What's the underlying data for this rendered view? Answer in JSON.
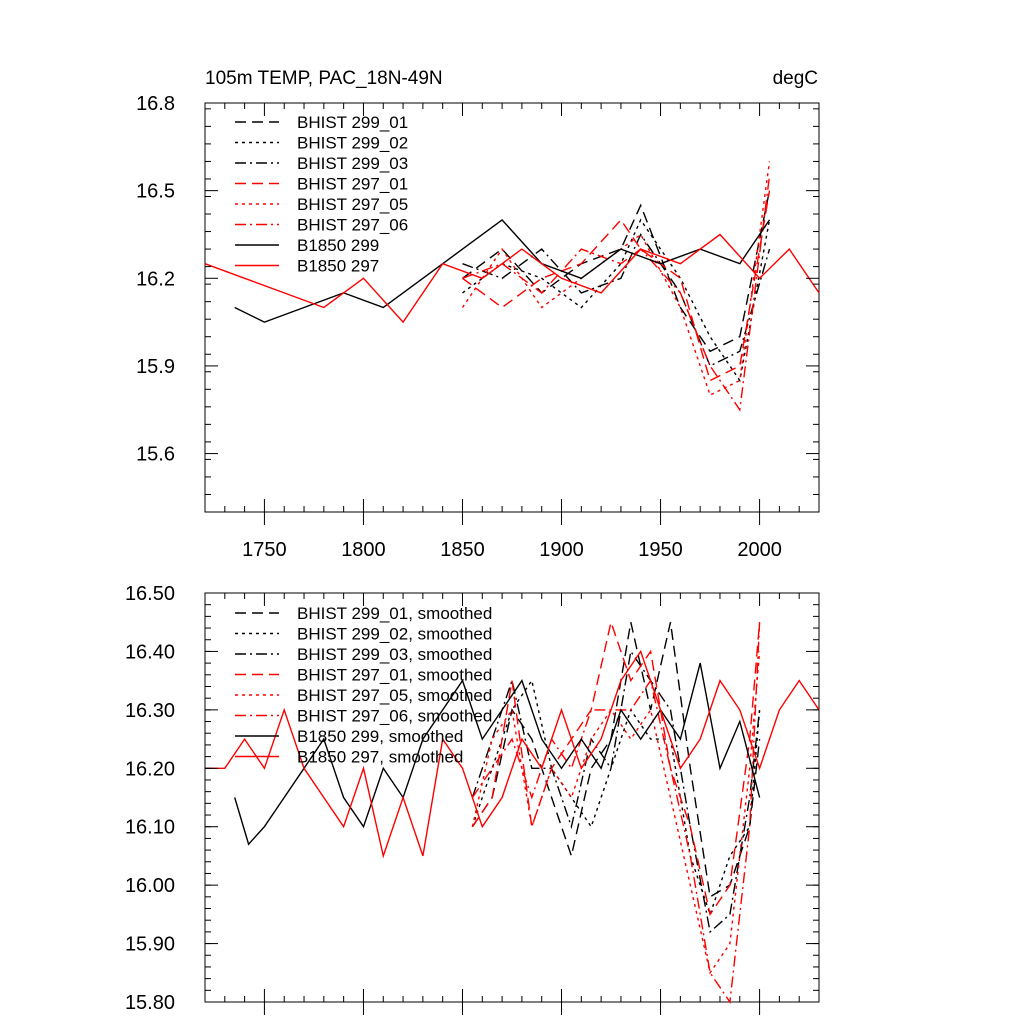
{
  "chart_data": [
    {
      "type": "line",
      "title": "105m TEMP, PAC_18N-49N",
      "title_right": "degC",
      "xlim": [
        1720,
        2030
      ],
      "ylim": [
        15.4,
        16.8
      ],
      "xticks": [
        1750,
        1800,
        1850,
        1900,
        1950,
        2000
      ],
      "xtick_labels": [
        "1750",
        "1800",
        "1850",
        "1900",
        "1950",
        "2000"
      ],
      "yticks": [
        15.6,
        15.9,
        16.2,
        16.5,
        16.8
      ],
      "ytick_labels": [
        "15.6",
        "15.9",
        "16.2",
        "16.5",
        "16.8"
      ],
      "grid": false,
      "legend_position": "top-left",
      "series": [
        {
          "name": "BHIST 299_01",
          "color": "#000000",
          "style": "dash",
          "x": [
            1850,
            1870,
            1890,
            1910,
            1930,
            1940,
            1960,
            1975,
            1990,
            2005
          ],
          "y": [
            16.2,
            16.3,
            16.15,
            16.25,
            16.3,
            16.45,
            16.1,
            15.95,
            16.0,
            16.5
          ]
        },
        {
          "name": "BHIST 299_02",
          "color": "#000000",
          "style": "dot",
          "x": [
            1850,
            1870,
            1890,
            1910,
            1930,
            1940,
            1960,
            1975,
            1990,
            2005
          ],
          "y": [
            16.15,
            16.25,
            16.2,
            16.1,
            16.25,
            16.4,
            16.2,
            16.0,
            15.85,
            16.4
          ]
        },
        {
          "name": "BHIST 299_03",
          "color": "#000000",
          "style": "dashdot",
          "x": [
            1850,
            1870,
            1890,
            1910,
            1930,
            1940,
            1960,
            1975,
            1990,
            2005
          ],
          "y": [
            16.25,
            16.2,
            16.3,
            16.15,
            16.2,
            16.35,
            16.15,
            15.9,
            15.95,
            16.3
          ]
        },
        {
          "name": "BHIST 297_01",
          "color": "#ff0000",
          "style": "dash",
          "x": [
            1850,
            1870,
            1890,
            1910,
            1930,
            1940,
            1960,
            1975,
            1990,
            2005
          ],
          "y": [
            16.2,
            16.1,
            16.2,
            16.25,
            16.4,
            16.3,
            16.2,
            15.85,
            15.9,
            16.5
          ]
        },
        {
          "name": "BHIST 297_05",
          "color": "#ff0000",
          "style": "dot",
          "x": [
            1850,
            1870,
            1890,
            1910,
            1930,
            1940,
            1960,
            1975,
            1990,
            2005
          ],
          "y": [
            16.1,
            16.3,
            16.1,
            16.2,
            16.3,
            16.35,
            16.1,
            15.8,
            15.85,
            16.6
          ]
        },
        {
          "name": "BHIST 297_06",
          "color": "#ff0000",
          "style": "dashdot",
          "x": [
            1850,
            1870,
            1890,
            1910,
            1930,
            1940,
            1960,
            1975,
            1990,
            2005
          ],
          "y": [
            16.2,
            16.25,
            16.15,
            16.3,
            16.25,
            16.3,
            16.15,
            15.9,
            15.75,
            16.55
          ]
        },
        {
          "name": "B1850 299",
          "color": "#000000",
          "style": "solid",
          "x": [
            1735,
            1750,
            1770,
            1790,
            1810,
            1830,
            1850,
            1870,
            1890,
            1910,
            1930,
            1950,
            1970,
            1990,
            2005
          ],
          "y": [
            16.1,
            16.05,
            16.1,
            16.15,
            16.1,
            16.2,
            16.3,
            16.4,
            16.25,
            16.2,
            16.3,
            16.25,
            16.3,
            16.25,
            16.4
          ]
        },
        {
          "name": "B1850 297",
          "color": "#ff0000",
          "style": "solid",
          "x": [
            1720,
            1740,
            1760,
            1780,
            1800,
            1820,
            1840,
            1860,
            1880,
            1900,
            1920,
            1940,
            1960,
            1980,
            2000,
            2015,
            2030
          ],
          "y": [
            16.25,
            16.2,
            16.15,
            16.1,
            16.2,
            16.05,
            16.25,
            16.2,
            16.3,
            16.2,
            16.15,
            16.3,
            16.25,
            16.35,
            16.2,
            16.3,
            16.15
          ]
        }
      ]
    },
    {
      "type": "line",
      "xlim": [
        1720,
        2030
      ],
      "ylim": [
        15.8,
        16.5
      ],
      "yticks": [
        15.8,
        15.9,
        16.0,
        16.1,
        16.2,
        16.3,
        16.4,
        16.5
      ],
      "ytick_labels": [
        "15.80",
        "15.90",
        "16.00",
        "16.10",
        "16.20",
        "16.30",
        "16.40",
        "16.50"
      ],
      "grid": false,
      "legend_position": "top-left",
      "series": [
        {
          "name": "BHIST 299_01, smoothed",
          "color": "#000000",
          "style": "dash",
          "x": [
            1855,
            1865,
            1875,
            1885,
            1895,
            1905,
            1915,
            1925,
            1935,
            1945,
            1955,
            1965,
            1975,
            1985,
            1995,
            2000
          ],
          "y": [
            16.1,
            16.15,
            16.3,
            16.25,
            16.15,
            16.05,
            16.2,
            16.25,
            16.45,
            16.3,
            16.45,
            16.2,
            15.98,
            16.0,
            16.1,
            16.25
          ]
        },
        {
          "name": "BHIST 299_02, smoothed",
          "color": "#000000",
          "style": "dot",
          "x": [
            1855,
            1865,
            1875,
            1885,
            1895,
            1905,
            1915,
            1925,
            1935,
            1945,
            1955,
            1965,
            1975,
            1985,
            1995,
            2000
          ],
          "y": [
            16.1,
            16.2,
            16.3,
            16.35,
            16.2,
            16.15,
            16.1,
            16.2,
            16.3,
            16.25,
            16.25,
            16.05,
            15.95,
            16.05,
            16.1,
            16.3
          ]
        },
        {
          "name": "BHIST 299_03, smoothed",
          "color": "#000000",
          "style": "dashdot",
          "x": [
            1855,
            1865,
            1875,
            1885,
            1895,
            1905,
            1915,
            1925,
            1935,
            1945,
            1955,
            1965,
            1975,
            1985,
            1995,
            2000
          ],
          "y": [
            16.15,
            16.25,
            16.35,
            16.2,
            16.2,
            16.1,
            16.25,
            16.2,
            16.4,
            16.35,
            16.3,
            16.1,
            15.92,
            15.95,
            16.15,
            16.3
          ]
        },
        {
          "name": "BHIST 297_01, smoothed",
          "color": "#ff0000",
          "style": "dash",
          "x": [
            1855,
            1865,
            1875,
            1885,
            1895,
            1905,
            1915,
            1925,
            1935,
            1945,
            1955,
            1965,
            1975,
            1985,
            1995,
            2000
          ],
          "y": [
            16.1,
            16.15,
            16.35,
            16.1,
            16.2,
            16.25,
            16.3,
            16.45,
            16.35,
            16.4,
            16.2,
            16.1,
            15.95,
            16.0,
            16.25,
            16.45
          ]
        },
        {
          "name": "BHIST 297_05, smoothed",
          "color": "#ff0000",
          "style": "dot",
          "x": [
            1855,
            1865,
            1875,
            1885,
            1895,
            1905,
            1915,
            1925,
            1935,
            1945,
            1955,
            1965,
            1975,
            1985,
            1995,
            2000
          ],
          "y": [
            16.1,
            16.25,
            16.3,
            16.1,
            16.2,
            16.15,
            16.25,
            16.3,
            16.25,
            16.3,
            16.15,
            16.0,
            15.85,
            15.9,
            16.2,
            16.4
          ]
        },
        {
          "name": "BHIST 297_06, smoothed",
          "color": "#ff0000",
          "style": "dashdot",
          "x": [
            1855,
            1865,
            1875,
            1885,
            1895,
            1905,
            1915,
            1925,
            1935,
            1945,
            1955,
            1965,
            1975,
            1985,
            1995,
            2000
          ],
          "y": [
            16.15,
            16.2,
            16.25,
            16.15,
            16.25,
            16.2,
            16.3,
            16.3,
            16.3,
            16.35,
            16.2,
            16.05,
            15.85,
            15.8,
            16.1,
            16.45
          ]
        },
        {
          "name": "B1850 299, smoothed",
          "color": "#000000",
          "style": "solid",
          "x": [
            1735,
            1742,
            1750,
            1760,
            1770,
            1780,
            1790,
            1800,
            1810,
            1820,
            1830,
            1840,
            1850,
            1860,
            1870,
            1880,
            1890,
            1900,
            1910,
            1920,
            1930,
            1940,
            1950,
            1960,
            1970,
            1980,
            1990,
            2000
          ],
          "y": [
            16.15,
            16.07,
            16.1,
            16.15,
            16.2,
            16.25,
            16.15,
            16.1,
            16.2,
            16.15,
            16.25,
            16.3,
            16.35,
            16.25,
            16.3,
            16.35,
            16.25,
            16.2,
            16.25,
            16.2,
            16.3,
            16.25,
            16.3,
            16.25,
            16.38,
            16.2,
            16.28,
            16.15
          ]
        },
        {
          "name": "B1850 297, smoothed",
          "color": "#ff0000",
          "style": "solid",
          "x": [
            1720,
            1730,
            1740,
            1750,
            1760,
            1770,
            1780,
            1790,
            1800,
            1810,
            1820,
            1830,
            1840,
            1850,
            1860,
            1870,
            1880,
            1890,
            1900,
            1910,
            1920,
            1930,
            1940,
            1950,
            1960,
            1970,
            1980,
            1990,
            2000,
            2010,
            2020,
            2030
          ],
          "y": [
            16.2,
            16.2,
            16.25,
            16.2,
            16.3,
            16.2,
            16.15,
            16.1,
            16.2,
            16.05,
            16.15,
            16.05,
            16.25,
            16.2,
            16.1,
            16.15,
            16.25,
            16.2,
            16.3,
            16.2,
            16.25,
            16.35,
            16.4,
            16.3,
            16.2,
            16.25,
            16.35,
            16.3,
            16.2,
            16.3,
            16.35,
            16.3
          ]
        }
      ]
    }
  ]
}
